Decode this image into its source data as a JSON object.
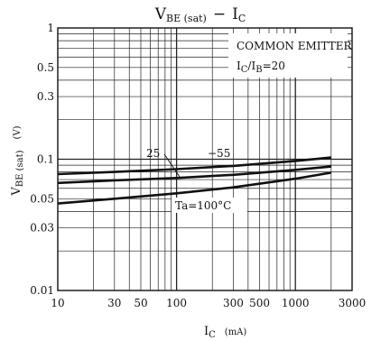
{
  "chart_data": {
    "type": "line",
    "title": {
      "main": "V",
      "main_sub": "BE (sat)",
      "dash": "−",
      "second": "I",
      "second_sub": "C"
    },
    "x_axis": {
      "scale": "log",
      "range": [
        10,
        3000
      ],
      "tick_labels": [
        "10",
        "30",
        "50",
        "100",
        "300",
        "500",
        "1000",
        "3000"
      ],
      "label": "I",
      "label_sub": "C",
      "unit": "(mA)"
    },
    "y_axis": {
      "scale": "log",
      "range": [
        0.01,
        1
      ],
      "tick_labels": [
        "0.01",
        "0.03",
        "0.05",
        "0.1",
        "0.3",
        "0.5",
        "1"
      ],
      "label": "V",
      "label_sub": "BE (sat)",
      "unit": "(V)"
    },
    "grid": true,
    "annotations": {
      "line1": "COMMON EMITTER",
      "line2": "I",
      "line2_sub1": "C",
      "line2_mid": "/I",
      "line2_sub2": "B",
      "line2_end": "=20"
    },
    "series": [
      {
        "name": "−55",
        "x": [
          10,
          30,
          100,
          300,
          1000,
          2000
        ],
        "y": [
          0.077,
          0.08,
          0.084,
          0.089,
          0.097,
          0.103
        ]
      },
      {
        "name": "25",
        "x": [
          10,
          30,
          100,
          300,
          1000,
          2000
        ],
        "y": [
          0.066,
          0.069,
          0.072,
          0.076,
          0.083,
          0.088
        ]
      },
      {
        "name": "Ta=100°C",
        "x": [
          10,
          30,
          100,
          300,
          1000,
          2000
        ],
        "y": [
          0.046,
          0.05,
          0.055,
          0.061,
          0.071,
          0.079
        ]
      }
    ]
  }
}
